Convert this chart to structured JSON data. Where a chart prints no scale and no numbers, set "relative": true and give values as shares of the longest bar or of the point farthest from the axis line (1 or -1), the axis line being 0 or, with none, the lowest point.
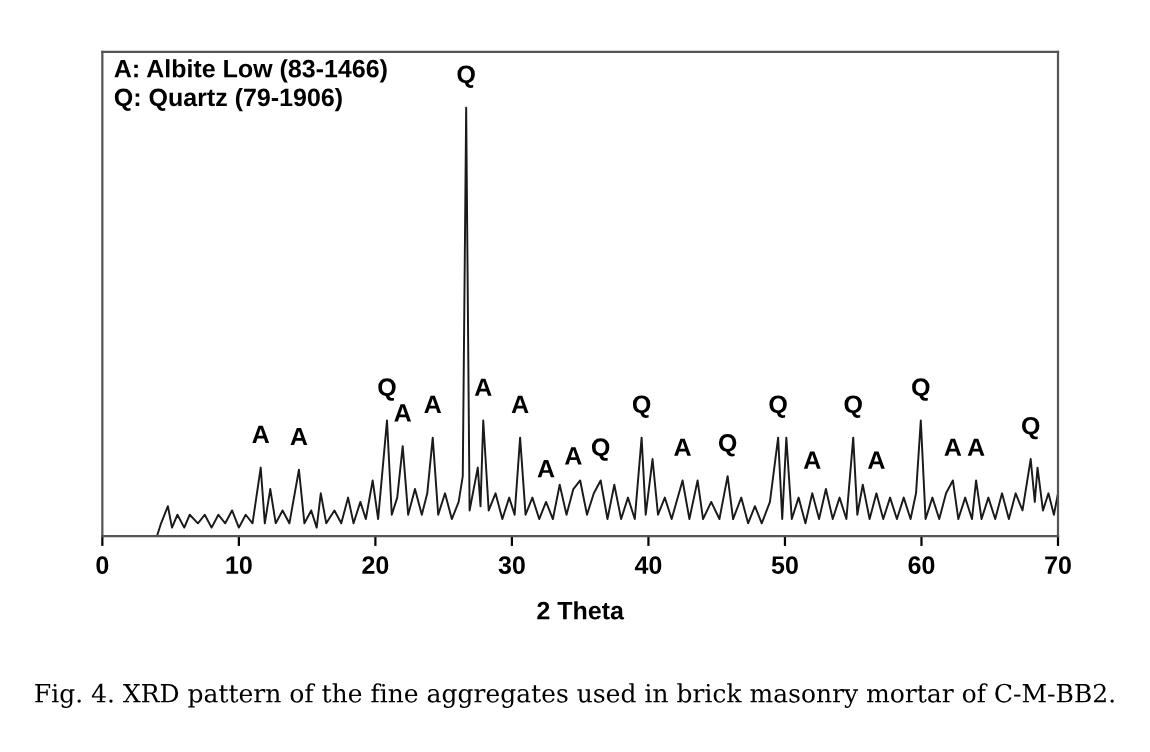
{
  "chart_data": {
    "type": "line",
    "relative": true,
    "xlabel": "2 Theta",
    "xlim": [
      0,
      70
    ],
    "xticks": [
      0,
      10,
      20,
      30,
      40,
      50,
      60,
      70
    ],
    "tick_labels": "x",
    "grid": false,
    "marker": "none",
    "line_style": "solid",
    "series": [
      {
        "color": "#1a1a1a",
        "x": [
          4.0,
          4.3,
          4.8,
          5.1,
          5.5,
          6.0,
          6.4,
          7.0,
          7.5,
          8.0,
          8.5,
          9.0,
          9.5,
          10.0,
          10.5,
          11.0,
          11.6,
          11.9,
          12.3,
          12.7,
          13.2,
          13.7,
          14.4,
          14.8,
          15.3,
          15.7,
          16.0,
          16.4,
          17.0,
          17.5,
          18.0,
          18.4,
          18.9,
          19.3,
          19.8,
          20.2,
          20.85,
          21.2,
          21.6,
          22.0,
          22.4,
          22.9,
          23.4,
          23.8,
          24.2,
          24.6,
          25.1,
          25.6,
          26.1,
          26.4,
          26.65,
          26.9,
          27.5,
          27.7,
          27.9,
          28.3,
          28.8,
          29.3,
          29.8,
          30.2,
          30.6,
          31.0,
          31.5,
          32.0,
          32.5,
          33.0,
          33.5,
          34.0,
          34.5,
          35.0,
          35.5,
          36.0,
          36.5,
          37.0,
          37.5,
          38.0,
          38.5,
          39.0,
          39.5,
          39.8,
          40.3,
          40.7,
          41.2,
          41.7,
          42.5,
          43.0,
          43.6,
          44.0,
          44.6,
          45.2,
          45.8,
          46.2,
          46.8,
          47.3,
          47.8,
          48.3,
          48.9,
          49.5,
          49.8,
          50.1,
          50.5,
          51.0,
          51.5,
          52.0,
          52.5,
          53.0,
          53.5,
          54.0,
          54.5,
          55.0,
          55.3,
          55.7,
          56.2,
          56.7,
          57.2,
          57.7,
          58.2,
          58.7,
          59.2,
          59.6,
          59.95,
          60.3,
          60.8,
          61.3,
          61.8,
          62.3,
          62.7,
          63.2,
          63.7,
          64.0,
          64.4,
          64.9,
          65.4,
          65.9,
          66.4,
          66.9,
          67.4,
          67.8,
          68.0,
          68.3,
          68.5,
          68.9,
          69.3,
          69.7,
          70.0
        ],
        "values": [
          0.0,
          0.03,
          0.07,
          0.02,
          0.05,
          0.02,
          0.05,
          0.03,
          0.05,
          0.02,
          0.05,
          0.03,
          0.06,
          0.02,
          0.05,
          0.03,
          0.16,
          0.03,
          0.11,
          0.03,
          0.06,
          0.03,
          0.155,
          0.03,
          0.06,
          0.02,
          0.1,
          0.03,
          0.06,
          0.03,
          0.09,
          0.03,
          0.08,
          0.04,
          0.13,
          0.04,
          0.27,
          0.05,
          0.09,
          0.21,
          0.05,
          0.11,
          0.05,
          0.1,
          0.23,
          0.05,
          0.1,
          0.04,
          0.08,
          0.14,
          1,
          0.06,
          0.16,
          0.07,
          0.27,
          0.06,
          0.1,
          0.04,
          0.09,
          0.05,
          0.23,
          0.05,
          0.09,
          0.04,
          0.08,
          0.04,
          0.12,
          0.05,
          0.11,
          0.13,
          0.05,
          0.1,
          0.13,
          0.04,
          0.12,
          0.04,
          0.09,
          0.04,
          0.23,
          0.05,
          0.18,
          0.05,
          0.09,
          0.04,
          0.13,
          0.04,
          0.13,
          0.04,
          0.08,
          0.04,
          0.14,
          0.04,
          0.09,
          0.03,
          0.07,
          0.03,
          0.08,
          0.23,
          0.04,
          0.23,
          0.04,
          0.09,
          0.03,
          0.1,
          0.04,
          0.11,
          0.04,
          0.09,
          0.04,
          0.23,
          0.05,
          0.12,
          0.04,
          0.1,
          0.04,
          0.09,
          0.04,
          0.09,
          0.04,
          0.1,
          0.27,
          0.04,
          0.09,
          0.04,
          0.1,
          0.13,
          0.04,
          0.09,
          0.04,
          0.13,
          0.04,
          0.09,
          0.04,
          0.1,
          0.04,
          0.1,
          0.06,
          0.14,
          0.18,
          0.08,
          0.16,
          0.06,
          0.1,
          0.05,
          0.1
        ]
      }
    ],
    "annotations": [
      "A: Albite Low (83-1466)\nQ: Quartz (79-1906)",
      {
        "text": "A",
        "x": 11.6,
        "y": 0.16
      },
      {
        "text": "A",
        "x": 14.4,
        "y": 0.155
      },
      {
        "text": "Q",
        "x": 20.85,
        "y": 0.27
      },
      {
        "text": "A",
        "x": 22.0,
        "y": 0.21
      },
      {
        "text": "A",
        "x": 24.2,
        "y": 0.23
      },
      {
        "text": "Q",
        "x": 26.65,
        "y": 1
      },
      {
        "text": "A",
        "x": 27.9,
        "y": 0.27
      },
      {
        "text": "A",
        "x": 30.6,
        "y": 0.23
      },
      {
        "text": "A",
        "x": 32.5,
        "y": 0.08
      },
      {
        "text": "A",
        "x": 34.5,
        "y": 0.11
      },
      {
        "text": "Q",
        "x": 36.5,
        "y": 0.13
      },
      {
        "text": "Q",
        "x": 39.5,
        "y": 0.23
      },
      {
        "text": "A",
        "x": 42.5,
        "y": 0.13
      },
      {
        "text": "Q",
        "x": 45.8,
        "y": 0.14
      },
      {
        "text": "Q",
        "x": 49.5,
        "y": 0.23
      },
      {
        "text": "A",
        "x": 52.0,
        "y": 0.1
      },
      {
        "text": "Q",
        "x": 55.0,
        "y": 0.23
      },
      {
        "text": "A",
        "x": 56.7,
        "y": 0.1
      },
      {
        "text": "Q",
        "x": 59.95,
        "y": 0.27
      },
      {
        "text": "A",
        "x": 62.3,
        "y": 0.13
      },
      {
        "text": "A",
        "x": 64.0,
        "y": 0.13
      },
      {
        "text": "Q",
        "x": 68.0,
        "y": 0.18
      },
      "Fig. 4. XRD pattern of the fine aggregates used in brick masonry mortar of C-M-BB2."
    ]
  }
}
